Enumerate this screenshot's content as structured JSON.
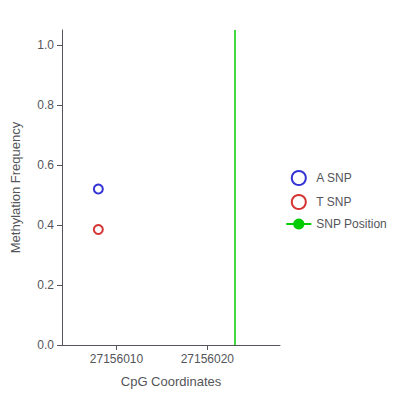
{
  "chart_data": {
    "type": "scatter",
    "xlabel": "CpG Coordinates",
    "ylabel": "Methylation Frequency",
    "series": [
      {
        "name": "A SNP",
        "type": "scatter",
        "color": "#0000cc",
        "marker": "open_circle",
        "x": [
          27156008
        ],
        "values": [
          0.52
        ]
      },
      {
        "name": "T SNP",
        "type": "scatter",
        "color": "#cc0000",
        "marker": "open_circle",
        "x": [
          27156008
        ],
        "values": [
          0.385
        ]
      },
      {
        "name": "SNP Position",
        "type": "vline",
        "color": "#00cc00",
        "line_style": "solid",
        "x": [
          27156023
        ]
      }
    ],
    "xlim": [
      27156004,
      27156028
    ],
    "ylim": [
      0.0,
      1.05
    ],
    "xticks": [
      27156010,
      27156020
    ],
    "yticks": [
      {
        "value": 0.0,
        "label": "0.0"
      },
      0.2,
      0.4,
      0.6,
      0.8,
      {
        "value": 1.0,
        "label": "1.0"
      }
    ],
    "grid": false,
    "legend": "right"
  }
}
